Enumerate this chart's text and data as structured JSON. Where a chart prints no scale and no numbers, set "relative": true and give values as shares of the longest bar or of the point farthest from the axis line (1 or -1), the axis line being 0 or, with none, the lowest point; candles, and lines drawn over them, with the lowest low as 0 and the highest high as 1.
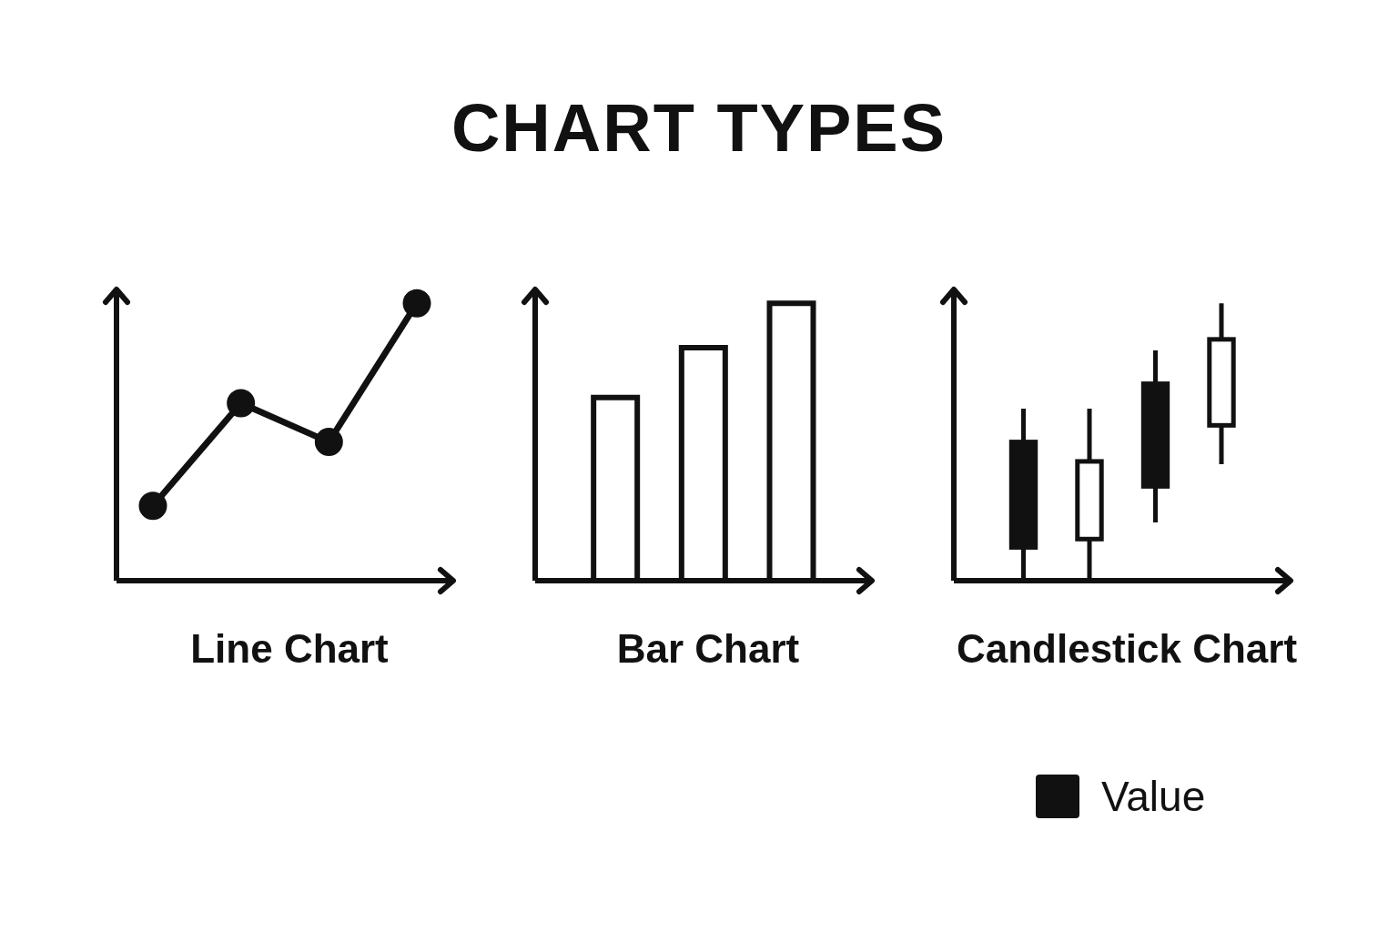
{
  "chart_data": [
    {
      "type": "other",
      "title": "CHART TYPES"
    },
    {
      "type": "line",
      "xlabel": "Line Chart",
      "categories": [
        null,
        null,
        null,
        null
      ],
      "values": [
        0.27,
        0.64,
        0.5,
        1
      ],
      "color": "#111111",
      "relative": true,
      "marker": "circle",
      "line_style": "solid"
    },
    {
      "type": "bar",
      "xlabel": "Bar Chart",
      "categories": [
        null,
        null,
        null
      ],
      "values": [
        0.66,
        0.84,
        1
      ],
      "color": "#ffffff",
      "relative": true
    },
    {
      "type": "candlestick",
      "xlabel": "Candlestick Chart",
      "categories": [
        null,
        null,
        null,
        null
      ],
      "relative": true,
      "legend": "bottom right",
      "series": [
        {
          "name": "Value",
          "color": "#111111",
          "ohlc": [
            [
              0.5,
              0.62,
              0,
              0.12
            ],
            [
              0.15,
              0.62,
              0,
              0.43
            ],
            [
              0.71,
              0.83,
              0.21,
              0.34
            ],
            [
              0.56,
              1,
              0.42,
              0.87
            ]
          ]
        }
      ]
    }
  ]
}
